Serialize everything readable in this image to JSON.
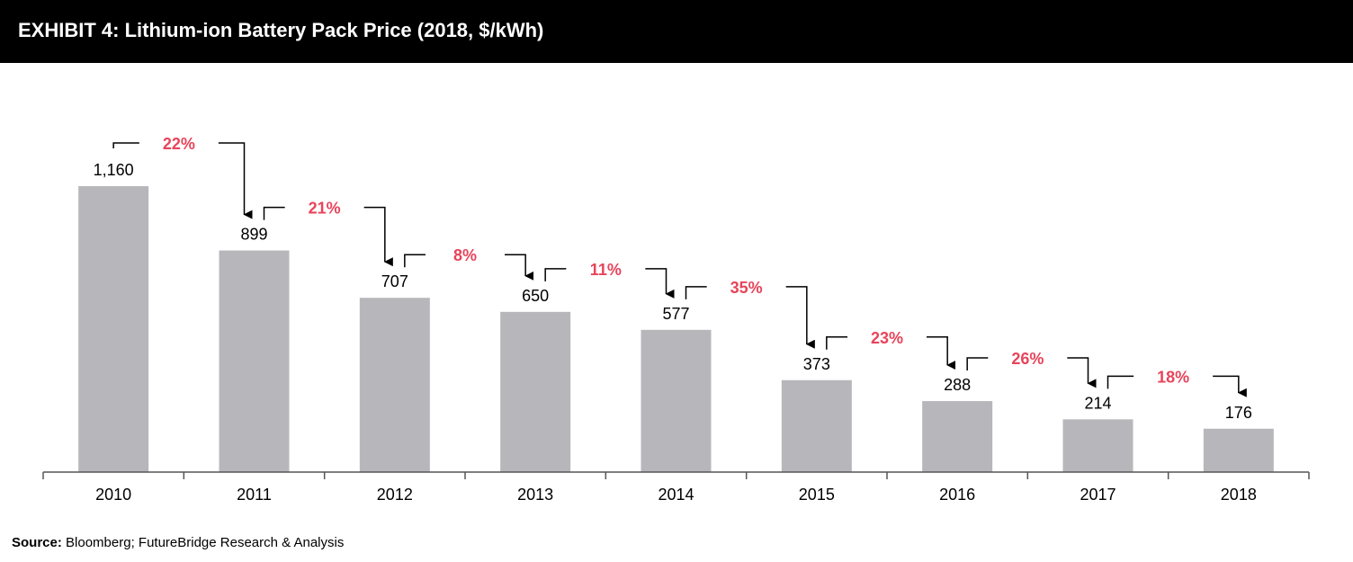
{
  "header": {
    "title": "EXHIBIT 4: Lithium-ion Battery Pack Price (2018, $/kWh)"
  },
  "source": {
    "label": "Source:",
    "text": " Bloomberg; FutureBridge Research & Analysis"
  },
  "colors": {
    "bar": "#b7b6bb",
    "change_label": "#e8445a",
    "text": "#000000",
    "header_bg": "#000000"
  },
  "chart_data": {
    "type": "bar",
    "title": "EXHIBIT 4: Lithium-ion Battery Pack Price (2018, $/kWh)",
    "categories": [
      "2010",
      "2011",
      "2012",
      "2013",
      "2014",
      "2015",
      "2016",
      "2017",
      "2018"
    ],
    "values": [
      1160,
      899,
      707,
      650,
      577,
      373,
      288,
      214,
      176
    ],
    "value_labels": [
      "1,160",
      "899",
      "707",
      "650",
      "577",
      "373",
      "288",
      "214",
      "176"
    ],
    "changes": [
      "22%",
      "21%",
      "8%",
      "11%",
      "35%",
      "23%",
      "26%",
      "18%"
    ],
    "xlabel": "",
    "ylabel": "",
    "grid": false,
    "legend": "none"
  }
}
